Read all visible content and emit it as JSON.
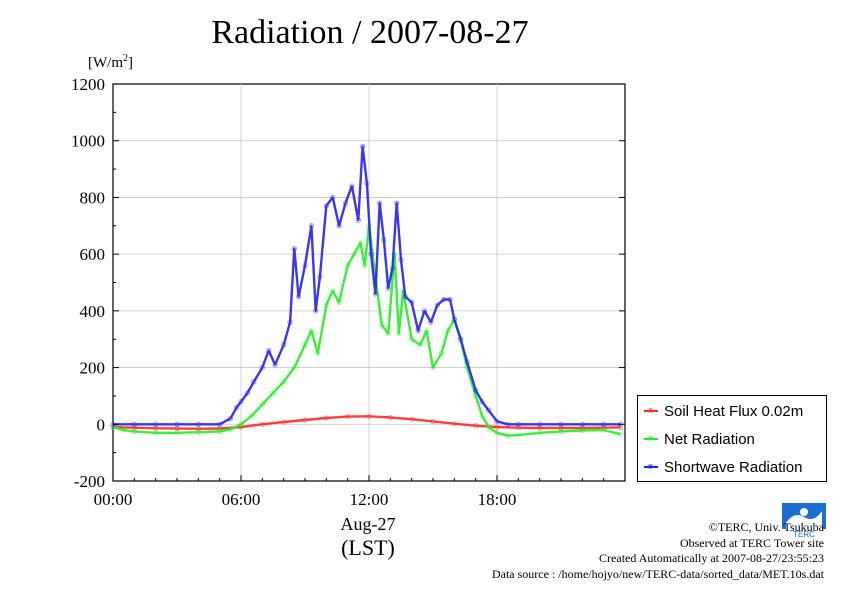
{
  "title": "Radiation / 2007-08-27",
  "unit_label": "[W/m",
  "unit_sup": "2",
  "unit_close": "]",
  "x_date_label": "Aug-27",
  "x_tz_label": "(LST)",
  "credits": {
    "line1": "©TERC, Univ. Tsukuba",
    "line2": "Observed at TERC Tower site",
    "line3": "Created Automatically at 2007-08-27/23:55:23",
    "line4": "Data source : /home/hojyo/new/TERC-data/sorted_data/MET.10s.dat"
  },
  "logo_text": "TERC",
  "chart_data": {
    "type": "line",
    "title": "Radiation / 2007-08-27",
    "ylabel": "[W/m2]",
    "xlabel": "",
    "xlim": [
      0,
      24
    ],
    "ylim": [
      -200,
      1200
    ],
    "x_ticks": [
      "00:00",
      "06:00",
      "12:00",
      "18:00"
    ],
    "y_ticks": [
      "-200",
      "0",
      "200",
      "400",
      "600",
      "800",
      "1000",
      "1200"
    ],
    "grid": true,
    "legend_position": "bottom-right outside",
    "series": [
      {
        "name": "Soil Heat Flux 0.02m",
        "color": "#ff2a2a",
        "x": [
          0,
          1,
          2,
          3,
          4,
          5,
          6,
          7,
          8,
          9,
          10,
          11,
          12,
          13,
          14,
          15,
          16,
          17,
          18,
          19,
          20,
          21,
          22,
          23,
          23.8
        ],
        "values": [
          -10,
          -12,
          -14,
          -15,
          -16,
          -15,
          -10,
          0,
          8,
          15,
          22,
          27,
          28,
          24,
          18,
          10,
          2,
          -5,
          -10,
          -12,
          -13,
          -13,
          -13,
          -12,
          -11
        ]
      },
      {
        "name": "Net Radiation",
        "color": "#22ee22",
        "x": [
          0,
          0.5,
          1,
          2,
          3,
          4,
          5,
          5.5,
          6,
          6.5,
          7,
          7.5,
          8,
          8.5,
          9,
          9.3,
          9.6,
          10,
          10.3,
          10.6,
          11,
          11.3,
          11.6,
          11.8,
          12,
          12.3,
          12.6,
          12.9,
          13.2,
          13.4,
          13.6,
          14,
          14.4,
          14.7,
          15,
          15.4,
          15.7,
          16,
          16.3,
          16.6,
          17,
          17.3,
          17.6,
          18,
          18.5,
          19,
          20,
          21,
          22,
          23,
          23.8
        ],
        "values": [
          -10,
          -20,
          -25,
          -30,
          -30,
          -28,
          -25,
          -18,
          0,
          30,
          70,
          110,
          150,
          200,
          280,
          330,
          250,
          420,
          470,
          430,
          560,
          600,
          640,
          560,
          700,
          520,
          350,
          320,
          600,
          320,
          470,
          300,
          280,
          330,
          200,
          250,
          330,
          370,
          300,
          200,
          100,
          30,
          -10,
          -30,
          -40,
          -38,
          -30,
          -25,
          -22,
          -20,
          -35
        ]
      },
      {
        "name": "Shortwave Radiation",
        "color": "#2222ee",
        "x": [
          0,
          1,
          2,
          3,
          4,
          5,
          5.5,
          5.8,
          6,
          6.3,
          6.6,
          7,
          7.3,
          7.6,
          8,
          8.3,
          8.5,
          8.7,
          9,
          9.3,
          9.5,
          9.7,
          10,
          10.3,
          10.6,
          10.9,
          11.2,
          11.5,
          11.7,
          11.9,
          12.1,
          12.3,
          12.5,
          12.7,
          12.9,
          13.1,
          13.3,
          13.5,
          13.7,
          14,
          14.3,
          14.6,
          14.9,
          15.2,
          15.5,
          15.8,
          16,
          16.3,
          16.6,
          17,
          17.3,
          17.6,
          18,
          18.5,
          19,
          20,
          21,
          22,
          23,
          23.8
        ],
        "values": [
          0,
          0,
          0,
          0,
          0,
          0,
          20,
          60,
          80,
          110,
          150,
          200,
          260,
          210,
          280,
          360,
          620,
          450,
          560,
          700,
          400,
          520,
          770,
          800,
          700,
          780,
          840,
          720,
          980,
          850,
          600,
          460,
          780,
          650,
          480,
          550,
          780,
          580,
          450,
          430,
          330,
          400,
          360,
          420,
          440,
          440,
          370,
          300,
          220,
          120,
          80,
          50,
          10,
          0,
          0,
          0,
          0,
          0,
          0,
          0
        ]
      }
    ]
  }
}
